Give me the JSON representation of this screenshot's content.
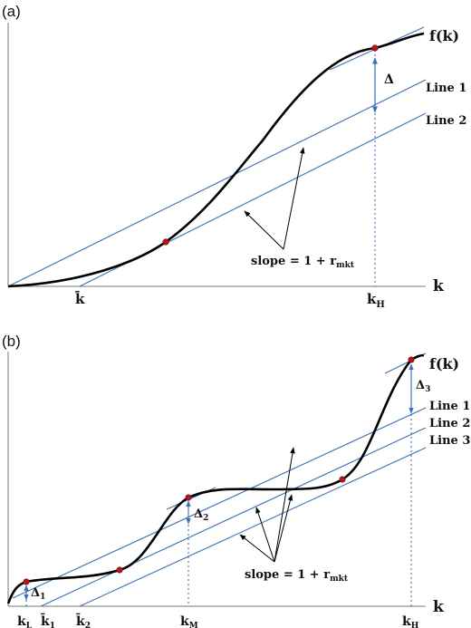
{
  "panel_a": {
    "label": "(a)",
    "f_label": "f(k)",
    "k_axis": "k",
    "line1": "Line 1",
    "line2": "Line 2",
    "delta": "Δ",
    "slope_text": "slope = 1 + r",
    "slope_sub": "mkt",
    "kbar": "k̄",
    "kH": "k",
    "kH_sub": "H"
  },
  "panel_b": {
    "label": "(b)",
    "f_label": "f(k)",
    "k_axis": "k",
    "line1": "Line 1",
    "line2": "Line 2",
    "line3": "Line 3",
    "delta1": "Δ",
    "delta1_sub": "1",
    "delta2": "Δ",
    "delta2_sub": "2",
    "delta3": "Δ",
    "delta3_sub": "3",
    "slope_text": "slope = 1 + r",
    "slope_sub": "mkt",
    "kL": "k",
    "kL_sub": "L",
    "kbar1": "k̄",
    "kbar1_sub": "1",
    "kbar2": "k̄",
    "kbar2_sub": "2",
    "kM": "k",
    "kM_sub": "M",
    "kH": "k",
    "kH_sub": "H"
  },
  "colors": {
    "line": "#3a72b5",
    "curve": "#000000",
    "point": "#b3161c"
  }
}
